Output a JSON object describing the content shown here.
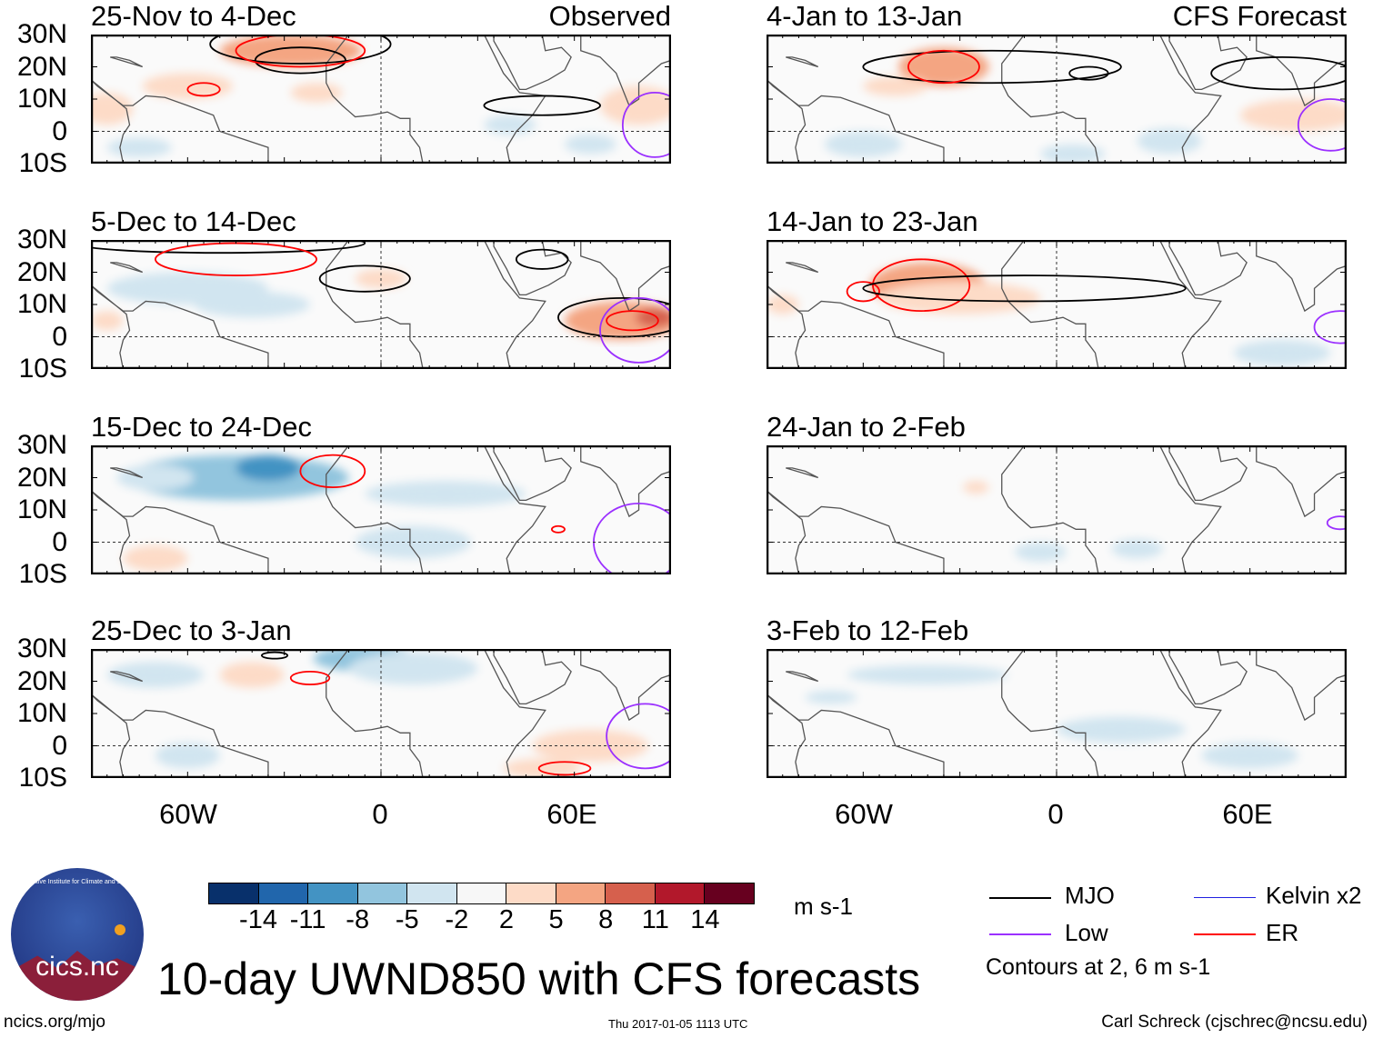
{
  "tags": {
    "observed": "Observed",
    "forecast": "CFS Forecast"
  },
  "lat_labels": [
    "30N",
    "20N",
    "10N",
    "0",
    "10S"
  ],
  "lon_labels": [
    "60W",
    "0",
    "60E"
  ],
  "panels": [
    {
      "title": "25-Nov to 4-Dec",
      "col": 0,
      "row": 0,
      "tag": "observed",
      "anomalies": [
        [
          -28,
          25,
          22,
          5,
          6
        ],
        [
          -60,
          14,
          14,
          4,
          4
        ],
        [
          -85,
          7,
          8,
          5,
          3
        ],
        [
          -20,
          12,
          8,
          3,
          3
        ],
        [
          80,
          8,
          12,
          6,
          5
        ],
        [
          65,
          -4,
          8,
          3,
          -3
        ],
        [
          40,
          2,
          8,
          3,
          -3
        ],
        [
          -75,
          -5,
          10,
          3,
          -3
        ]
      ],
      "contours": [
        [
          "mjo",
          -25,
          22,
          14,
          4
        ],
        [
          "mjo",
          -25,
          27,
          28,
          6
        ],
        [
          "mjo",
          50,
          8,
          18,
          3
        ],
        [
          "er",
          -55,
          13,
          5,
          2
        ],
        [
          "er",
          -25,
          25,
          20,
          5
        ],
        [
          "low",
          85,
          2,
          10,
          10
        ]
      ]
    },
    {
      "title": "4-Jan to 13-Jan",
      "col": 1,
      "row": 0,
      "tag": "forecast",
      "anomalies": [
        [
          -35,
          20,
          14,
          6,
          8
        ],
        [
          -50,
          14,
          10,
          3,
          3
        ],
        [
          75,
          5,
          18,
          5,
          4
        ],
        [
          -60,
          -4,
          12,
          4,
          -3
        ],
        [
          35,
          -3,
          10,
          4,
          -3
        ],
        [
          5,
          -7,
          10,
          3,
          -2
        ]
      ],
      "contours": [
        [
          "mjo",
          -20,
          20,
          40,
          5
        ],
        [
          "mjo",
          70,
          18,
          22,
          5
        ],
        [
          "mjo",
          10,
          18,
          6,
          2
        ],
        [
          "er",
          -35,
          20,
          11,
          5
        ],
        [
          "low",
          85,
          2,
          10,
          8
        ]
      ]
    },
    {
      "title": "5-Dec to 14-Dec",
      "col": 0,
      "row": 1,
      "tag": "",
      "anomalies": [
        [
          -60,
          15,
          25,
          5,
          -3
        ],
        [
          -40,
          10,
          18,
          4,
          -3
        ],
        [
          75,
          5,
          18,
          6,
          7
        ],
        [
          85,
          6,
          6,
          3,
          11
        ],
        [
          0,
          18,
          8,
          3,
          3
        ],
        [
          -85,
          5,
          5,
          3,
          3
        ]
      ],
      "contours": [
        [
          "mjo",
          75,
          6,
          20,
          6
        ],
        [
          "mjo",
          -5,
          18,
          14,
          4
        ],
        [
          "mjo",
          -50,
          29,
          45,
          3
        ],
        [
          "mjo",
          50,
          24,
          8,
          3
        ],
        [
          "er",
          -45,
          24,
          25,
          5
        ],
        [
          "er",
          78,
          5,
          8,
          3
        ],
        [
          "low",
          80,
          2,
          12,
          10
        ]
      ]
    },
    {
      "title": "14-Jan to 23-Jan",
      "col": 1,
      "row": 1,
      "tag": "",
      "anomalies": [
        [
          -40,
          16,
          18,
          7,
          8
        ],
        [
          -30,
          12,
          25,
          5,
          3
        ],
        [
          70,
          -5,
          15,
          4,
          -3
        ],
        [
          -85,
          10,
          5,
          3,
          3
        ]
      ],
      "contours": [
        [
          "er",
          -42,
          16,
          15,
          8
        ],
        [
          "er",
          -60,
          14,
          5,
          3
        ],
        [
          "mjo",
          -10,
          15,
          50,
          4
        ],
        [
          "low",
          88,
          3,
          8,
          5
        ]
      ]
    },
    {
      "title": "15-Dec to 24-Dec",
      "col": 0,
      "row": 2,
      "tag": "",
      "anomalies": [
        [
          -45,
          20,
          35,
          7,
          -6
        ],
        [
          -35,
          23,
          10,
          4,
          -9
        ],
        [
          -70,
          20,
          12,
          4,
          -3
        ],
        [
          20,
          15,
          25,
          4,
          -3
        ],
        [
          10,
          0,
          18,
          5,
          -3
        ],
        [
          -70,
          -5,
          10,
          4,
          3
        ]
      ],
      "contours": [
        [
          "er",
          -15,
          22,
          10,
          5
        ],
        [
          "er",
          55,
          4,
          2,
          1
        ],
        [
          "low",
          80,
          0,
          14,
          12
        ]
      ]
    },
    {
      "title": "24-Jan to 2-Feb",
      "col": 1,
      "row": 2,
      "tag": "",
      "anomalies": [
        [
          25,
          -2,
          8,
          3,
          -3
        ],
        [
          -5,
          -3,
          8,
          3,
          -3
        ],
        [
          -25,
          17,
          4,
          2,
          3
        ]
      ],
      "contours": [
        [
          "low",
          88,
          6,
          4,
          2
        ]
      ]
    },
    {
      "title": "25-Dec to 3-Jan",
      "col": 0,
      "row": 3,
      "tag": "",
      "anomalies": [
        [
          -40,
          22,
          10,
          4,
          4
        ],
        [
          -5,
          27,
          16,
          4,
          -7
        ],
        [
          10,
          24,
          20,
          5,
          -3
        ],
        [
          -70,
          22,
          15,
          4,
          -3
        ],
        [
          65,
          0,
          18,
          5,
          3
        ],
        [
          -60,
          -3,
          10,
          4,
          -3
        ],
        [
          50,
          -7,
          12,
          3,
          3
        ]
      ],
      "contours": [
        [
          "er",
          -22,
          21,
          6,
          2
        ],
        [
          "er",
          57,
          -7,
          8,
          2
        ],
        [
          "mjo",
          -33,
          28,
          4,
          1
        ],
        [
          "low",
          82,
          3,
          12,
          10
        ]
      ]
    },
    {
      "title": "3-Feb to 12-Feb",
      "col": 1,
      "row": 3,
      "tag": "",
      "anomalies": [
        [
          -40,
          22,
          25,
          3,
          -3
        ],
        [
          20,
          5,
          20,
          4,
          -3
        ],
        [
          60,
          -3,
          15,
          4,
          -3
        ],
        [
          -70,
          15,
          8,
          2,
          -3
        ]
      ],
      "contours": []
    }
  ],
  "colorbar": {
    "levels": [
      "-14",
      "-11",
      "-8",
      "-5",
      "-2",
      "2",
      "5",
      "8",
      "11",
      "14"
    ],
    "colors": [
      "#08306b",
      "#2166ac",
      "#4393c3",
      "#92c5de",
      "#d1e5f0",
      "#f7f7f7",
      "#fddbc7",
      "#f4a582",
      "#d6604d",
      "#b2182b",
      "#67001f"
    ],
    "units": "m s-1"
  },
  "legend": {
    "mjo": "MJO",
    "low": "Low",
    "kelvin": "Kelvin x2",
    "er": "ER",
    "note": "Contours at 2, 6 m s-1",
    "colors": {
      "mjo": "#000000",
      "low": "#9b30ff",
      "kelvin": "#2020e0",
      "er": "#ff0000"
    }
  },
  "title": "10-day UWND850 with CFS forecasts",
  "logo_text": "cics.nc",
  "logo_ring": "Cooperative Institute for Climate and Satellites",
  "footer": {
    "url": "ncics.org/mjo",
    "timestamp": "Thu 2017-01-05 1113 UTC",
    "author": "Carl Schreck (cjschrec@ncsu.edu)"
  }
}
